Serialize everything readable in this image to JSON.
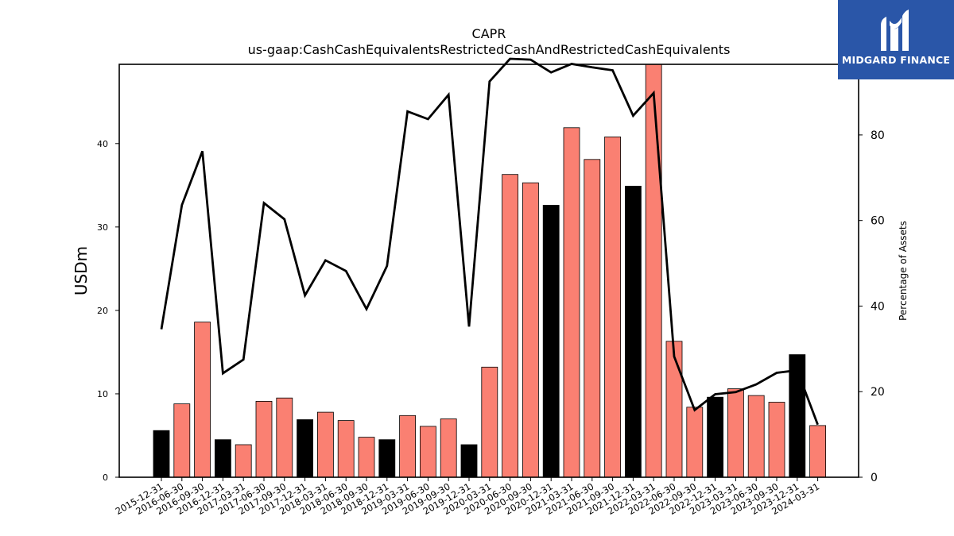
{
  "chart_data": {
    "type": "bar",
    "title": "CAPR",
    "subtitle": "us-gaap:CashCashEquivalentsRestrictedCashAndRestrictedCashEquivalents",
    "ylabel": "USDm",
    "y2label": "Percentage of Assets",
    "ylim": [
      0,
      49.5
    ],
    "y2lim": [
      0,
      96.5
    ],
    "yticks": [
      0,
      10,
      20,
      30,
      40
    ],
    "y2ticks": [
      0,
      20,
      40,
      60,
      80
    ],
    "grid": false,
    "categories": [
      "2015-12-31",
      "2016-06-30",
      "2016-09-30",
      "2016-12-31",
      "2017-03-31",
      "2017-06-30",
      "2017-09-30",
      "2017-12-31",
      "2018-03-31",
      "2018-06-30",
      "2018-09-30",
      "2018-12-31",
      "2019-03-31",
      "2019-06-30",
      "2019-09-30",
      "2019-12-31",
      "2020-03-31",
      "2020-06-30",
      "2020-09-30",
      "2020-12-31",
      "2021-03-31",
      "2021-06-30",
      "2021-09-30",
      "2021-12-31",
      "2022-03-31",
      "2022-06-30",
      "2022-09-30",
      "2022-12-31",
      "2023-03-31",
      "2023-06-30",
      "2023-09-30",
      "2023-12-31",
      "2024-03-31"
    ],
    "series": [
      {
        "kind": "bar",
        "values": [
          5.6,
          8.8,
          18.6,
          4.5,
          3.9,
          9.1,
          9.5,
          6.9,
          7.8,
          6.8,
          4.8,
          4.5,
          7.4,
          6.1,
          7.0,
          3.9,
          13.2,
          36.3,
          35.3,
          32.6,
          41.9,
          38.1,
          40.8,
          34.9,
          49.5,
          16.3,
          8.4,
          9.6,
          10.6,
          9.8,
          9.0,
          14.7,
          6.2
        ],
        "colors": [
          "#000000",
          "#fa8072",
          "#fa8072",
          "#000000",
          "#fa8072",
          "#fa8072",
          "#fa8072",
          "#000000",
          "#fa8072",
          "#fa8072",
          "#fa8072",
          "#000000",
          "#fa8072",
          "#fa8072",
          "#fa8072",
          "#000000",
          "#fa8072",
          "#fa8072",
          "#fa8072",
          "#000000",
          "#fa8072",
          "#fa8072",
          "#fa8072",
          "#000000",
          "#fa8072",
          "#fa8072",
          "#fa8072",
          "#000000",
          "#fa8072",
          "#fa8072",
          "#fa8072",
          "#000000",
          "#fa8072"
        ]
      },
      {
        "kind": "line",
        "axis": "right",
        "color": "#000000",
        "values": [
          34.6,
          63.6,
          76.2,
          24.3,
          27.5,
          64.1,
          60.3,
          42.5,
          50.7,
          48.2,
          39.3,
          49.4,
          85.5,
          83.7,
          89.4,
          35.2,
          92.5,
          97.8,
          97.6,
          94.6,
          96.6,
          95.8,
          95.1,
          84.5,
          89.8,
          28.2,
          15.7,
          19.4,
          19.9,
          21.7,
          24.4,
          25.0,
          12.3
        ]
      }
    ]
  },
  "logo": {
    "text": "MIDGARD FINANCE",
    "bg_color": "#2a56a8"
  }
}
